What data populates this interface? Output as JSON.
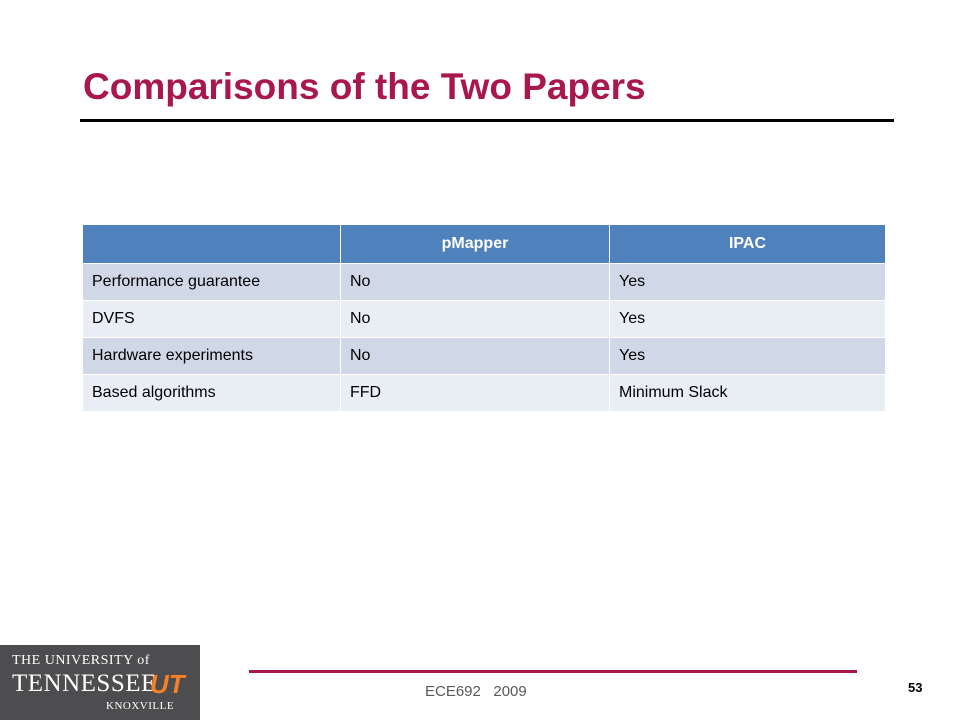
{
  "title": "Comparisons of the Two Papers",
  "table": {
    "header": [
      "pMapper",
      "IPAC"
    ],
    "rows": [
      [
        "Performance guarantee",
        "No",
        "Yes"
      ],
      [
        "DVFS",
        "No",
        "Yes"
      ],
      [
        "Hardware experiments",
        "No",
        "Yes"
      ],
      [
        "Based algorithms",
        "FFD",
        "Minimum Slack"
      ]
    ]
  },
  "logo": {
    "line1": "THE UNIVERSITY of",
    "line2": "TENNESSEE",
    "mark": "UT",
    "line3": "KNOXVILLE"
  },
  "footer": {
    "course": "ECE692   2009",
    "page": "53"
  }
}
